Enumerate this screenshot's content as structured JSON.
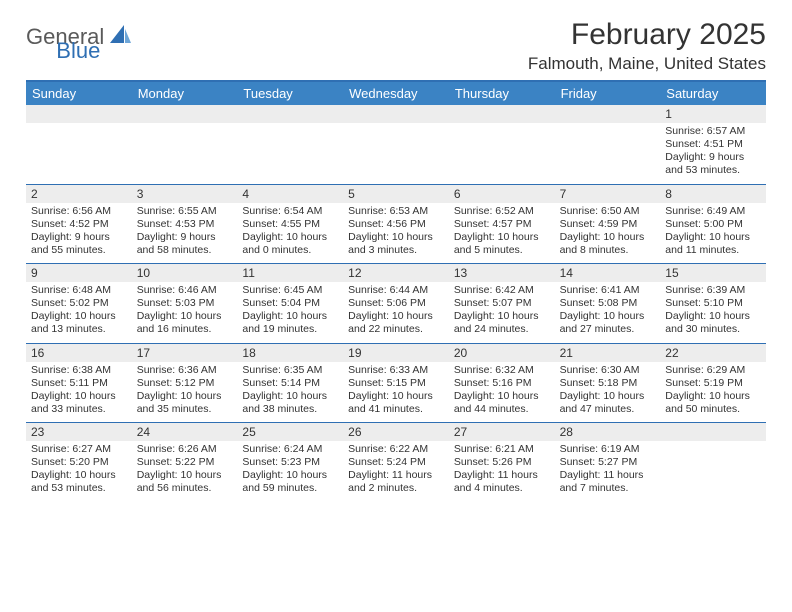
{
  "brand": {
    "part1": "General",
    "part2": "Blue"
  },
  "title": "February 2025",
  "location": "Falmouth, Maine, United States",
  "colors": {
    "header_bg": "#3b83c4",
    "accent_line": "#2f6fb3",
    "band_bg": "#ededed",
    "text": "#333333",
    "logo_gray": "#5a5a5a",
    "logo_blue": "#2f6fb3"
  },
  "day_labels": [
    "Sunday",
    "Monday",
    "Tuesday",
    "Wednesday",
    "Thursday",
    "Friday",
    "Saturday"
  ],
  "weeks": [
    {
      "nums": [
        "",
        "",
        "",
        "",
        "",
        "",
        "1"
      ],
      "cells": [
        null,
        null,
        null,
        null,
        null,
        null,
        {
          "sunrise": "Sunrise: 6:57 AM",
          "sunset": "Sunset: 4:51 PM",
          "d1": "Daylight: 9 hours",
          "d2": "and 53 minutes."
        }
      ]
    },
    {
      "nums": [
        "2",
        "3",
        "4",
        "5",
        "6",
        "7",
        "8"
      ],
      "cells": [
        {
          "sunrise": "Sunrise: 6:56 AM",
          "sunset": "Sunset: 4:52 PM",
          "d1": "Daylight: 9 hours",
          "d2": "and 55 minutes."
        },
        {
          "sunrise": "Sunrise: 6:55 AM",
          "sunset": "Sunset: 4:53 PM",
          "d1": "Daylight: 9 hours",
          "d2": "and 58 minutes."
        },
        {
          "sunrise": "Sunrise: 6:54 AM",
          "sunset": "Sunset: 4:55 PM",
          "d1": "Daylight: 10 hours",
          "d2": "and 0 minutes."
        },
        {
          "sunrise": "Sunrise: 6:53 AM",
          "sunset": "Sunset: 4:56 PM",
          "d1": "Daylight: 10 hours",
          "d2": "and 3 minutes."
        },
        {
          "sunrise": "Sunrise: 6:52 AM",
          "sunset": "Sunset: 4:57 PM",
          "d1": "Daylight: 10 hours",
          "d2": "and 5 minutes."
        },
        {
          "sunrise": "Sunrise: 6:50 AM",
          "sunset": "Sunset: 4:59 PM",
          "d1": "Daylight: 10 hours",
          "d2": "and 8 minutes."
        },
        {
          "sunrise": "Sunrise: 6:49 AM",
          "sunset": "Sunset: 5:00 PM",
          "d1": "Daylight: 10 hours",
          "d2": "and 11 minutes."
        }
      ]
    },
    {
      "nums": [
        "9",
        "10",
        "11",
        "12",
        "13",
        "14",
        "15"
      ],
      "cells": [
        {
          "sunrise": "Sunrise: 6:48 AM",
          "sunset": "Sunset: 5:02 PM",
          "d1": "Daylight: 10 hours",
          "d2": "and 13 minutes."
        },
        {
          "sunrise": "Sunrise: 6:46 AM",
          "sunset": "Sunset: 5:03 PM",
          "d1": "Daylight: 10 hours",
          "d2": "and 16 minutes."
        },
        {
          "sunrise": "Sunrise: 6:45 AM",
          "sunset": "Sunset: 5:04 PM",
          "d1": "Daylight: 10 hours",
          "d2": "and 19 minutes."
        },
        {
          "sunrise": "Sunrise: 6:44 AM",
          "sunset": "Sunset: 5:06 PM",
          "d1": "Daylight: 10 hours",
          "d2": "and 22 minutes."
        },
        {
          "sunrise": "Sunrise: 6:42 AM",
          "sunset": "Sunset: 5:07 PM",
          "d1": "Daylight: 10 hours",
          "d2": "and 24 minutes."
        },
        {
          "sunrise": "Sunrise: 6:41 AM",
          "sunset": "Sunset: 5:08 PM",
          "d1": "Daylight: 10 hours",
          "d2": "and 27 minutes."
        },
        {
          "sunrise": "Sunrise: 6:39 AM",
          "sunset": "Sunset: 5:10 PM",
          "d1": "Daylight: 10 hours",
          "d2": "and 30 minutes."
        }
      ]
    },
    {
      "nums": [
        "16",
        "17",
        "18",
        "19",
        "20",
        "21",
        "22"
      ],
      "cells": [
        {
          "sunrise": "Sunrise: 6:38 AM",
          "sunset": "Sunset: 5:11 PM",
          "d1": "Daylight: 10 hours",
          "d2": "and 33 minutes."
        },
        {
          "sunrise": "Sunrise: 6:36 AM",
          "sunset": "Sunset: 5:12 PM",
          "d1": "Daylight: 10 hours",
          "d2": "and 35 minutes."
        },
        {
          "sunrise": "Sunrise: 6:35 AM",
          "sunset": "Sunset: 5:14 PM",
          "d1": "Daylight: 10 hours",
          "d2": "and 38 minutes."
        },
        {
          "sunrise": "Sunrise: 6:33 AM",
          "sunset": "Sunset: 5:15 PM",
          "d1": "Daylight: 10 hours",
          "d2": "and 41 minutes."
        },
        {
          "sunrise": "Sunrise: 6:32 AM",
          "sunset": "Sunset: 5:16 PM",
          "d1": "Daylight: 10 hours",
          "d2": "and 44 minutes."
        },
        {
          "sunrise": "Sunrise: 6:30 AM",
          "sunset": "Sunset: 5:18 PM",
          "d1": "Daylight: 10 hours",
          "d2": "and 47 minutes."
        },
        {
          "sunrise": "Sunrise: 6:29 AM",
          "sunset": "Sunset: 5:19 PM",
          "d1": "Daylight: 10 hours",
          "d2": "and 50 minutes."
        }
      ]
    },
    {
      "nums": [
        "23",
        "24",
        "25",
        "26",
        "27",
        "28",
        ""
      ],
      "cells": [
        {
          "sunrise": "Sunrise: 6:27 AM",
          "sunset": "Sunset: 5:20 PM",
          "d1": "Daylight: 10 hours",
          "d2": "and 53 minutes."
        },
        {
          "sunrise": "Sunrise: 6:26 AM",
          "sunset": "Sunset: 5:22 PM",
          "d1": "Daylight: 10 hours",
          "d2": "and 56 minutes."
        },
        {
          "sunrise": "Sunrise: 6:24 AM",
          "sunset": "Sunset: 5:23 PM",
          "d1": "Daylight: 10 hours",
          "d2": "and 59 minutes."
        },
        {
          "sunrise": "Sunrise: 6:22 AM",
          "sunset": "Sunset: 5:24 PM",
          "d1": "Daylight: 11 hours",
          "d2": "and 2 minutes."
        },
        {
          "sunrise": "Sunrise: 6:21 AM",
          "sunset": "Sunset: 5:26 PM",
          "d1": "Daylight: 11 hours",
          "d2": "and 4 minutes."
        },
        {
          "sunrise": "Sunrise: 6:19 AM",
          "sunset": "Sunset: 5:27 PM",
          "d1": "Daylight: 11 hours",
          "d2": "and 7 minutes."
        },
        null
      ]
    }
  ]
}
